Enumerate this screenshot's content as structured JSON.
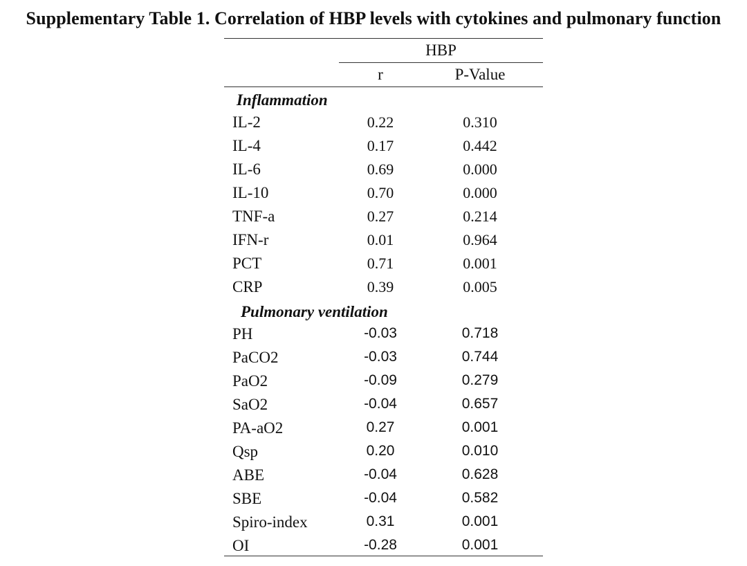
{
  "title": "Supplementary Table 1. Correlation of HBP levels with cytokines and pulmonary function",
  "table": {
    "group_header": "HBP",
    "col_r": "r",
    "col_p": "P-Value",
    "sections": [
      {
        "label": "Inflammation",
        "rows": [
          {
            "name": "IL-2",
            "r": "0.22",
            "p": "0.310"
          },
          {
            "name": "IL-4",
            "r": "0.17",
            "p": "0.442"
          },
          {
            "name": "IL-6",
            "r": "0.69",
            "p": "0.000"
          },
          {
            "name": "IL-10",
            "r": "0.70",
            "p": "0.000"
          },
          {
            "name": "TNF-a",
            "r": "0.27",
            "p": "0.214"
          },
          {
            "name": "IFN-r",
            "r": "0.01",
            "p": "0.964"
          },
          {
            "name": "PCT",
            "r": "0.71",
            "p": "0.001"
          },
          {
            "name": "CRP",
            "r": "0.39",
            "p": "0.005"
          }
        ]
      },
      {
        "label": "Pulmonary ventilation",
        "rows": [
          {
            "name": "PH",
            "r": "-0.03",
            "p": "0.718"
          },
          {
            "name": "PaCO2",
            "r": "-0.03",
            "p": "0.744"
          },
          {
            "name": "PaO2",
            "r": "-0.09",
            "p": "0.279"
          },
          {
            "name": "SaO2",
            "r": "-0.04",
            "p": "0.657"
          },
          {
            "name": "PA-aO2",
            "r": "0.27",
            "p": "0.001"
          },
          {
            "name": "Qsp",
            "r": "0.20",
            "p": "0.010"
          },
          {
            "name": "ABE",
            "r": "-0.04",
            "p": "0.628"
          },
          {
            "name": "SBE",
            "r": "-0.04",
            "p": "0.582"
          },
          {
            "name": "Spiro-index",
            "r": "0.31",
            "p": "0.001"
          },
          {
            "name": "OI",
            "r": "-0.28",
            "p": "0.001"
          }
        ]
      }
    ]
  }
}
